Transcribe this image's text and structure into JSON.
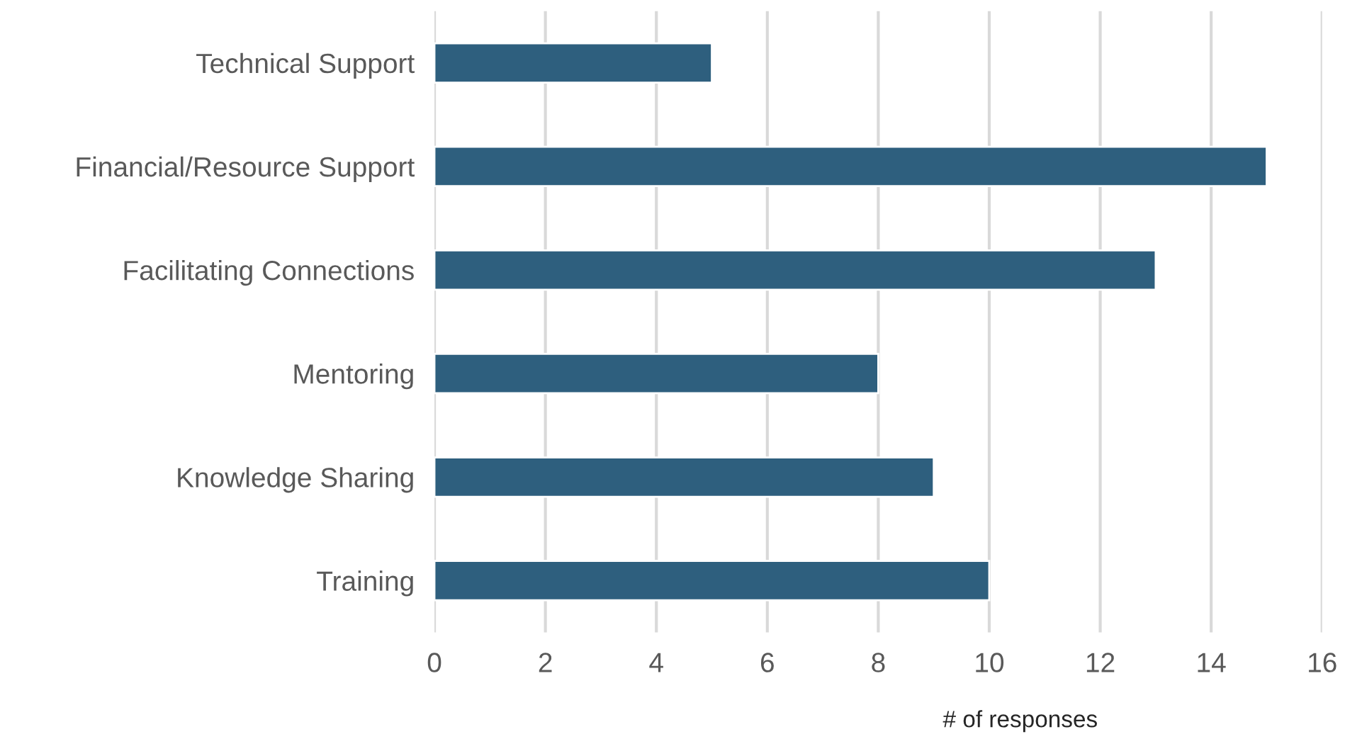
{
  "chart_data": {
    "type": "bar",
    "orientation": "horizontal",
    "xlabel": "# of responses",
    "categories": [
      "Technical Support",
      "Financial/Resource Support",
      "Facilitating Connections",
      "Mentoring",
      "Knowledge Sharing",
      "Training"
    ],
    "values": [
      5,
      15,
      13,
      8,
      9,
      10
    ],
    "color": "#2e5f7e",
    "xlim": [
      0,
      16
    ],
    "xticks": [
      0,
      2,
      4,
      6,
      8,
      10,
      12,
      14,
      16
    ],
    "grid": "x",
    "legend": false
  }
}
